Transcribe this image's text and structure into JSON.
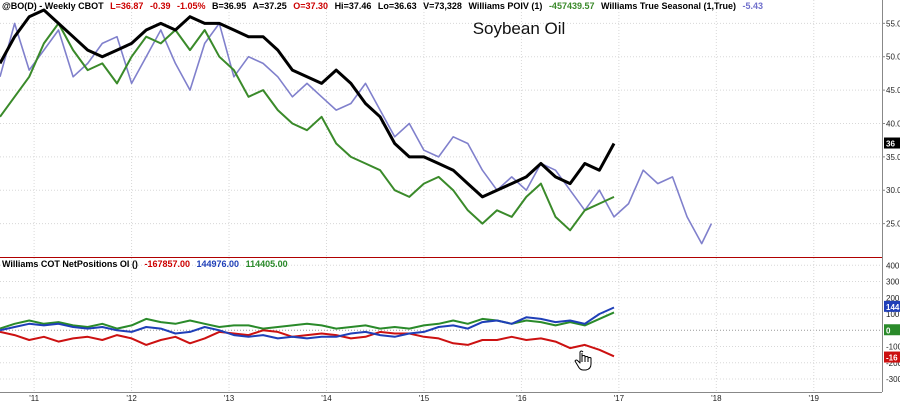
{
  "header": {
    "symbol": "@BO(D) - Weekly  CBOT",
    "last": "L=36.87",
    "change": "-0.39",
    "change_pct": "-1.05%",
    "bid": "B=36.95",
    "ask": "A=37.25",
    "open": "O=37.30",
    "high": "Hi=37.46",
    "low": "Lo=36.63",
    "volume": "V=73,328",
    "poiv_label": "Williams POIV (1)",
    "poiv_value": "-457439.57",
    "seasonal_label": "Williams True Seasonal (1,True)",
    "seasonal_value": "-5.43"
  },
  "lower_header": {
    "label": "Williams COT NetPositions OI ()",
    "v1": "-167857.00",
    "v2": "144976.00",
    "v3": "114405.00"
  },
  "colors": {
    "price": "#000000",
    "poiv": "#3a8a2a",
    "seasonal": "#8080cc",
    "commercials": "#cc1111",
    "large_specs": "#1f3fb8",
    "small_specs": "#2a8a2a",
    "separator": "#b00000"
  },
  "price_badge": "36",
  "cot_badges": [
    "144",
    "0",
    "-16"
  ],
  "cursor_icon": "hand-pointer-icon",
  "chart_data": [
    {
      "type": "line",
      "title": "Soybean Oil",
      "x_tick_labels": [
        "'11",
        "'12",
        "'13",
        "'14",
        "'15",
        "'16",
        "'17",
        "'18",
        "'19"
      ],
      "y_tick_labels": [
        "55.0",
        "50.0",
        "45.0",
        "40.0",
        "35.0",
        "30.0",
        "25.0"
      ],
      "ylim": [
        20,
        57
      ],
      "xlim": [
        2010.65,
        2019.7
      ],
      "grid": true,
      "series": [
        {
          "name": "@BO(D)",
          "x": [
            2010.65,
            2010.8,
            2010.95,
            2011.1,
            2011.25,
            2011.4,
            2011.55,
            2011.7,
            2011.85,
            2012.0,
            2012.15,
            2012.3,
            2012.45,
            2012.6,
            2012.75,
            2012.9,
            2013.05,
            2013.2,
            2013.35,
            2013.5,
            2013.65,
            2013.8,
            2013.95,
            2014.1,
            2014.25,
            2014.4,
            2014.55,
            2014.7,
            2014.85,
            2015.0,
            2015.15,
            2015.3,
            2015.45,
            2015.6,
            2015.75,
            2015.9,
            2016.05,
            2016.2,
            2016.35,
            2016.5,
            2016.65,
            2016.8,
            2016.95
          ],
          "values": [
            49,
            53,
            56,
            57,
            55,
            53,
            51,
            50,
            51,
            52,
            54,
            55,
            54,
            56,
            55,
            55,
            54,
            53,
            53,
            51,
            48,
            47,
            46,
            48,
            46,
            43,
            41,
            37,
            35,
            35,
            34,
            33,
            31,
            29,
            30,
            31,
            32,
            34,
            32,
            31,
            34,
            33,
            37
          ]
        },
        {
          "name": "Williams POIV (1)",
          "x": [
            2010.65,
            2010.8,
            2010.95,
            2011.1,
            2011.25,
            2011.4,
            2011.55,
            2011.7,
            2011.85,
            2012.0,
            2012.15,
            2012.3,
            2012.45,
            2012.6,
            2012.75,
            2012.9,
            2013.05,
            2013.2,
            2013.35,
            2013.5,
            2013.65,
            2013.8,
            2013.95,
            2014.1,
            2014.25,
            2014.4,
            2014.55,
            2014.7,
            2014.85,
            2015.0,
            2015.15,
            2015.3,
            2015.45,
            2015.6,
            2015.75,
            2015.9,
            2016.05,
            2016.2,
            2016.35,
            2016.5,
            2016.65,
            2016.8,
            2016.95
          ],
          "values": [
            41,
            44,
            47,
            52,
            55,
            51,
            48,
            49,
            46,
            50,
            53,
            52,
            54,
            51,
            54,
            50,
            48,
            44,
            45,
            42,
            40,
            39,
            41,
            37,
            35,
            34,
            33,
            30,
            29,
            31,
            32,
            30,
            27,
            25,
            27,
            26,
            29,
            31,
            26,
            24,
            27,
            28,
            29
          ]
        },
        {
          "name": "Williams True Seasonal (1,True)",
          "x": [
            2010.65,
            2010.8,
            2010.95,
            2011.1,
            2011.25,
            2011.4,
            2011.55,
            2011.7,
            2011.85,
            2012.0,
            2012.15,
            2012.3,
            2012.45,
            2012.6,
            2012.75,
            2012.9,
            2013.05,
            2013.2,
            2013.35,
            2013.5,
            2013.65,
            2013.8,
            2013.95,
            2014.1,
            2014.25,
            2014.4,
            2014.55,
            2014.7,
            2014.85,
            2015.0,
            2015.15,
            2015.3,
            2015.45,
            2015.6,
            2015.75,
            2015.9,
            2016.05,
            2016.2,
            2016.35,
            2016.5,
            2016.65,
            2016.8,
            2016.95,
            2017.1,
            2017.25,
            2017.4,
            2017.55,
            2017.7,
            2017.85,
            2017.95
          ],
          "values": [
            47,
            55,
            48,
            51,
            54,
            47,
            49,
            52,
            53,
            46,
            50,
            54,
            49,
            45,
            52,
            55,
            47,
            50,
            49,
            47,
            44,
            46,
            44,
            42,
            43,
            46,
            42,
            38,
            40,
            36,
            35,
            38,
            37,
            33,
            30,
            32,
            30,
            34,
            33,
            30,
            27,
            30,
            26,
            28,
            33,
            31,
            32,
            26,
            22,
            25
          ]
        }
      ]
    },
    {
      "type": "line",
      "title": "",
      "y_tick_labels": [
        "400",
        "300",
        "200",
        "100",
        "0",
        "-100",
        "-200",
        "-300"
      ],
      "ylim": [
        -380,
        420
      ],
      "xlim": [
        2010.65,
        2019.7
      ],
      "grid": true,
      "series": [
        {
          "name": "Commercials",
          "x": [
            2010.65,
            2010.8,
            2010.95,
            2011.1,
            2011.25,
            2011.4,
            2011.55,
            2011.7,
            2011.85,
            2012.0,
            2012.15,
            2012.3,
            2012.45,
            2012.6,
            2012.75,
            2012.9,
            2013.05,
            2013.2,
            2013.35,
            2013.5,
            2013.65,
            2013.8,
            2013.95,
            2014.1,
            2014.25,
            2014.4,
            2014.55,
            2014.7,
            2014.85,
            2015.0,
            2015.15,
            2015.3,
            2015.45,
            2015.6,
            2015.75,
            2015.9,
            2016.05,
            2016.2,
            2016.35,
            2016.5,
            2016.65,
            2016.8,
            2016.95
          ],
          "values": [
            -10,
            -30,
            -60,
            -40,
            -70,
            -50,
            -40,
            -60,
            -30,
            -50,
            -90,
            -60,
            -40,
            -80,
            -50,
            -10,
            -20,
            -30,
            0,
            -10,
            -40,
            -30,
            -20,
            -30,
            -50,
            -40,
            -10,
            -20,
            -20,
            -40,
            -50,
            -80,
            -90,
            -60,
            -60,
            -40,
            -60,
            -50,
            -70,
            -110,
            -90,
            -120,
            -160
          ]
        },
        {
          "name": "Large Specs",
          "x": [
            2010.65,
            2010.8,
            2010.95,
            2011.1,
            2011.25,
            2011.4,
            2011.55,
            2011.7,
            2011.85,
            2012.0,
            2012.15,
            2012.3,
            2012.45,
            2012.6,
            2012.75,
            2012.9,
            2013.05,
            2013.2,
            2013.35,
            2013.5,
            2013.65,
            2013.8,
            2013.95,
            2014.1,
            2014.25,
            2014.4,
            2014.55,
            2014.7,
            2014.85,
            2015.0,
            2015.15,
            2015.3,
            2015.45,
            2015.6,
            2015.75,
            2015.9,
            2016.05,
            2016.2,
            2016.35,
            2016.5,
            2016.65,
            2016.8,
            2016.95
          ],
          "values": [
            0,
            20,
            40,
            30,
            40,
            20,
            10,
            20,
            0,
            -10,
            20,
            10,
            -20,
            -10,
            20,
            0,
            -30,
            -40,
            -30,
            -50,
            -40,
            -50,
            -40,
            -40,
            -20,
            -10,
            -30,
            -40,
            -20,
            -10,
            20,
            30,
            10,
            50,
            60,
            40,
            80,
            70,
            50,
            60,
            40,
            100,
            140
          ]
        },
        {
          "name": "Small Specs",
          "x": [
            2010.65,
            2010.8,
            2010.95,
            2011.1,
            2011.25,
            2011.4,
            2011.55,
            2011.7,
            2011.85,
            2012.0,
            2012.15,
            2012.3,
            2012.45,
            2012.6,
            2012.75,
            2012.9,
            2013.05,
            2013.2,
            2013.35,
            2013.5,
            2013.65,
            2013.8,
            2013.95,
            2014.1,
            2014.25,
            2014.4,
            2014.55,
            2014.7,
            2014.85,
            2015.0,
            2015.15,
            2015.3,
            2015.45,
            2015.6,
            2015.75,
            2015.9,
            2016.05,
            2016.2,
            2016.35,
            2016.5,
            2016.65,
            2016.8,
            2016.95
          ],
          "values": [
            10,
            40,
            60,
            40,
            50,
            30,
            20,
            40,
            10,
            30,
            70,
            50,
            40,
            60,
            40,
            20,
            30,
            30,
            10,
            20,
            30,
            40,
            30,
            10,
            20,
            30,
            10,
            20,
            10,
            30,
            40,
            60,
            40,
            70,
            60,
            40,
            60,
            50,
            30,
            50,
            30,
            70,
            110
          ]
        }
      ]
    }
  ]
}
